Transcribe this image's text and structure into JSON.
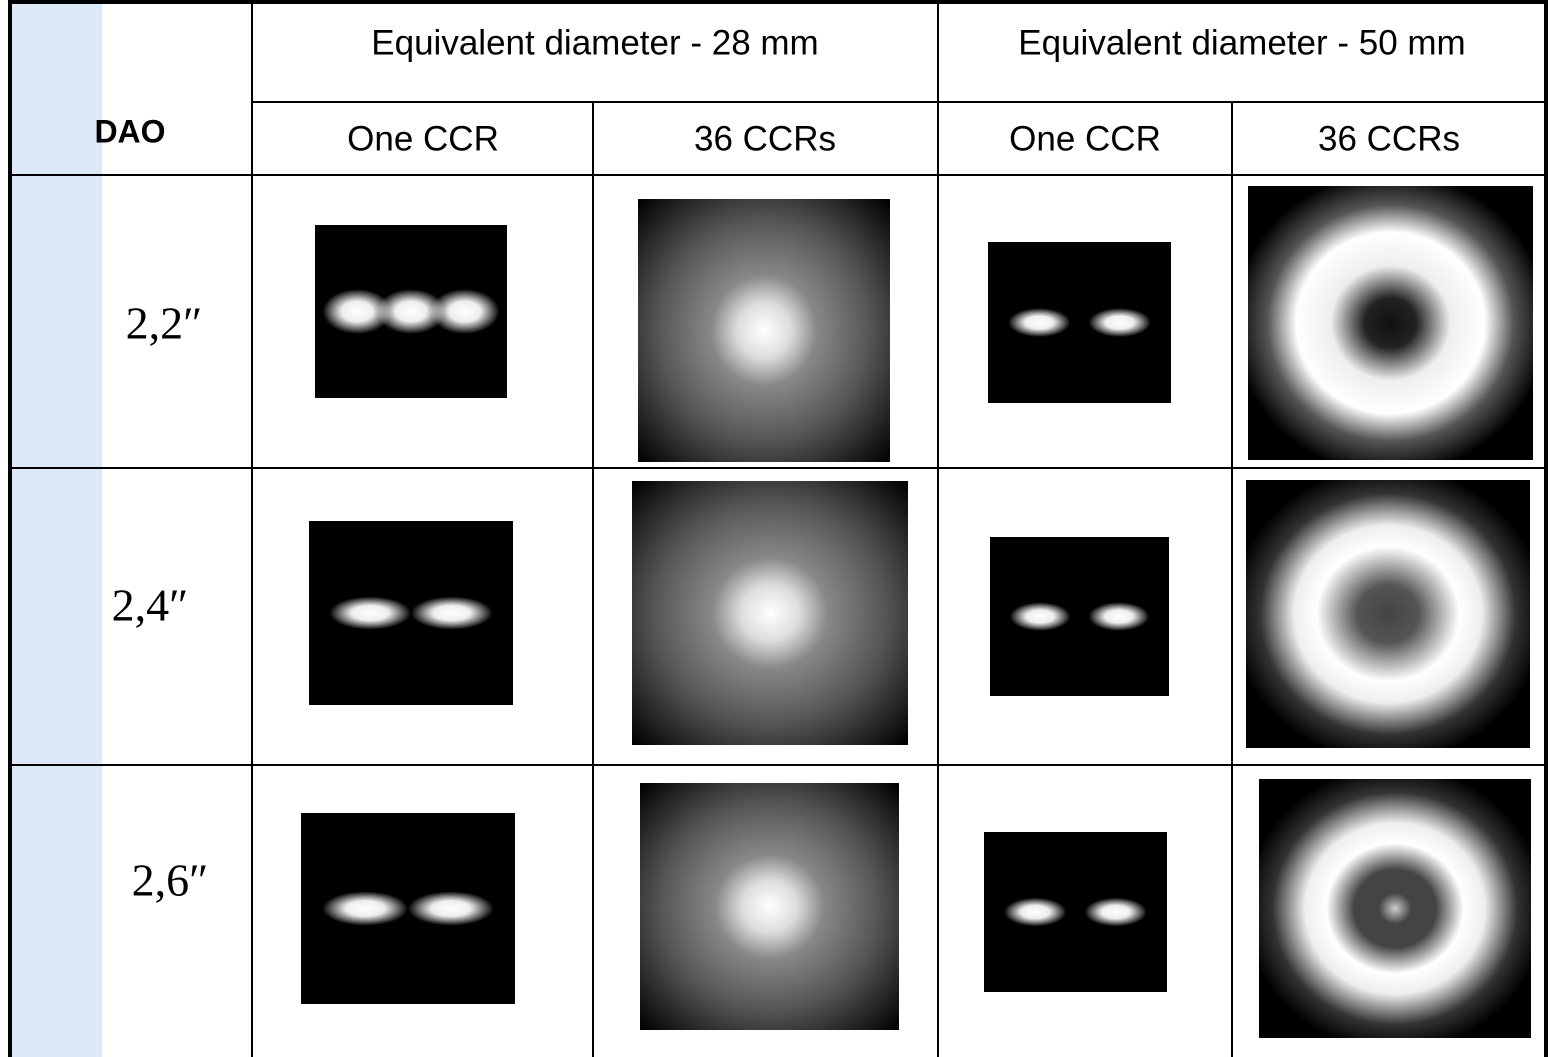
{
  "header": {
    "corner": "DAO",
    "groups": [
      "Equivalent diameter - 28 mm",
      "Equivalent diameter - 50 mm"
    ],
    "subheaders": [
      "One CCR",
      "36 CCRs",
      "One CCR",
      "36 CCRs"
    ]
  },
  "rows": [
    {
      "label": "2,2″"
    },
    {
      "label": "2,4″"
    },
    {
      "label": "2,6″"
    }
  ]
}
